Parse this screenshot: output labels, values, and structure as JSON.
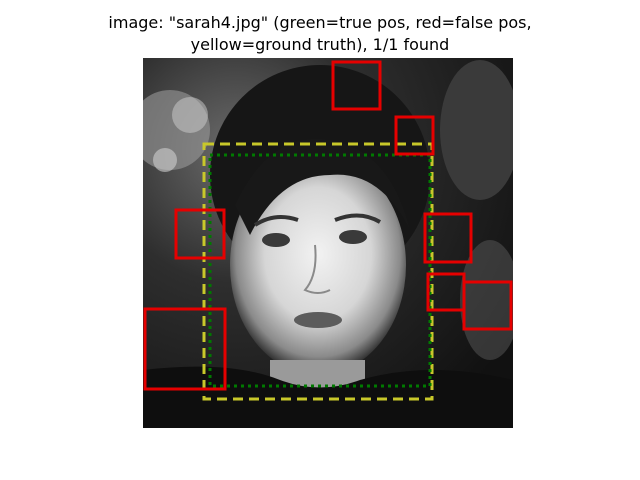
{
  "title": {
    "line1": "image: \"sarah4.jpg\" (green=true pos, red=false pos,",
    "line2": "yellow=ground truth), 1/1 found"
  },
  "colors": {
    "true_positive": "#007a00",
    "false_positive": "#e60000",
    "ground_truth": "#c8c82a",
    "background": "#ffffff"
  },
  "image": {
    "description_name": "grayscale-face-photo"
  }
}
